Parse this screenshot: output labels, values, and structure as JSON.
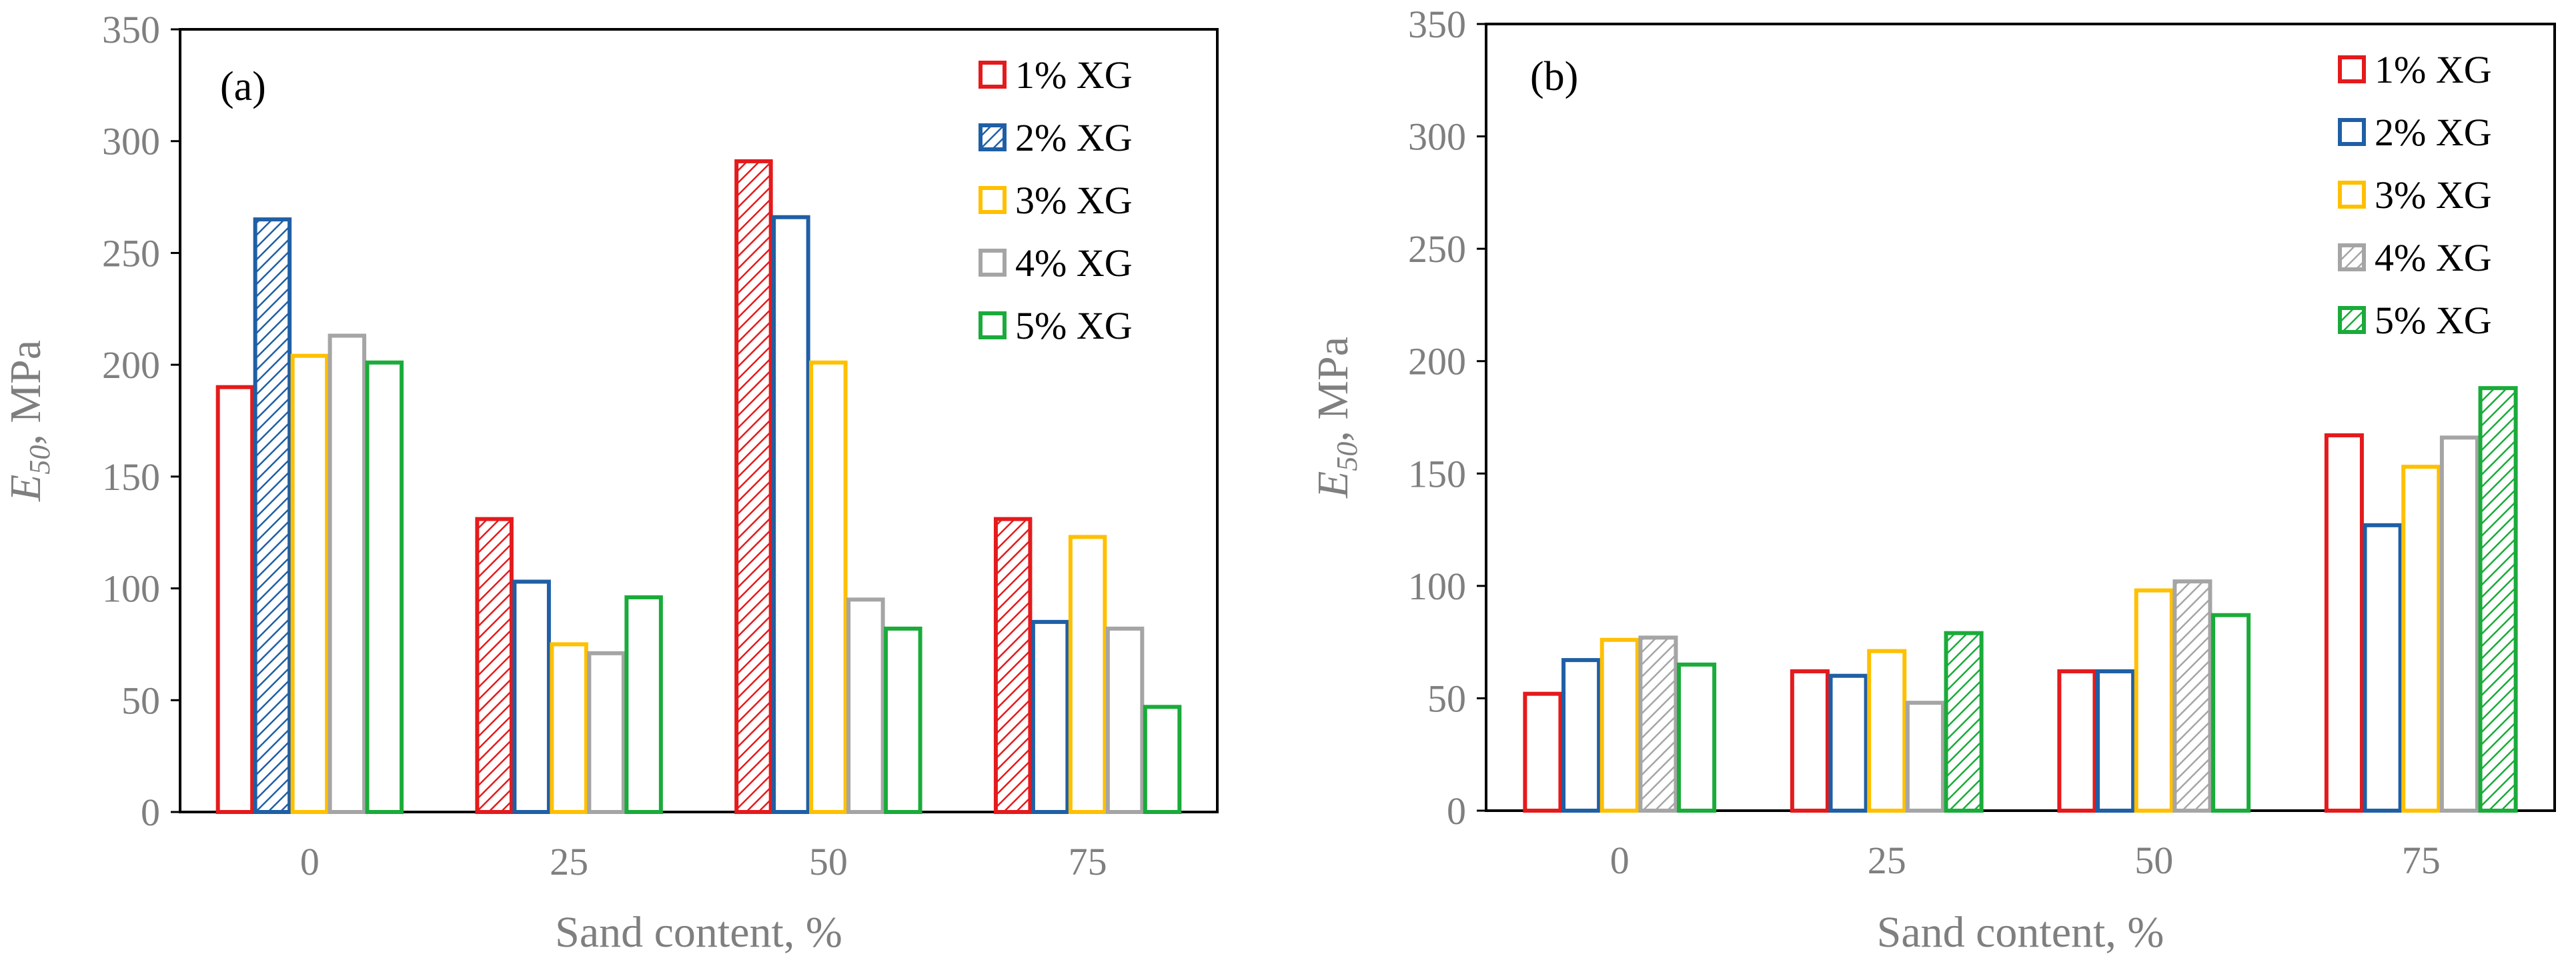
{
  "chart_data": [
    {
      "type": "bar",
      "panel_label": "(a)",
      "categories": [
        "0",
        "25",
        "50",
        "75"
      ],
      "series": [
        {
          "name": "1% XG",
          "color": "#e41a1c",
          "values": [
            190,
            131,
            291,
            131
          ],
          "hatched": [
            false,
            true,
            true,
            true
          ]
        },
        {
          "name": "2% XG",
          "color": "#1f5fa5",
          "values": [
            265,
            103,
            266,
            85
          ],
          "hatched": [
            true,
            false,
            false,
            false
          ]
        },
        {
          "name": "3% XG",
          "color": "#ffc000",
          "values": [
            204,
            75,
            201,
            123
          ],
          "hatched": [
            false,
            false,
            false,
            false
          ]
        },
        {
          "name": "4% XG",
          "color": "#a5a5a5",
          "values": [
            213,
            71,
            95,
            82
          ],
          "hatched": [
            false,
            false,
            false,
            false
          ]
        },
        {
          "name": "5% XG",
          "color": "#1aab3a",
          "values": [
            201,
            96,
            82,
            47
          ],
          "hatched": [
            false,
            false,
            false,
            false
          ]
        }
      ],
      "legend_hatched": [
        false,
        true,
        false,
        false,
        false
      ],
      "xlabel": "Sand content, %",
      "ylabel_main": "E",
      "ylabel_sub": "50",
      "ylabel_rest": ", MPa",
      "ylim": [
        0,
        350
      ],
      "yticks": [
        "0",
        "50",
        "100",
        "150",
        "200",
        "250",
        "300",
        "350"
      ]
    },
    {
      "type": "bar",
      "panel_label": "(b)",
      "categories": [
        "0",
        "25",
        "50",
        "75"
      ],
      "series": [
        {
          "name": "1% XG",
          "color": "#e41a1c",
          "values": [
            52,
            62,
            62,
            167
          ],
          "hatched": [
            false,
            false,
            false,
            false
          ]
        },
        {
          "name": "2% XG",
          "color": "#1f5fa5",
          "values": [
            67,
            60,
            62,
            127
          ],
          "hatched": [
            false,
            false,
            false,
            false
          ]
        },
        {
          "name": "3% XG",
          "color": "#ffc000",
          "values": [
            76,
            71,
            98,
            153
          ],
          "hatched": [
            false,
            false,
            false,
            false
          ]
        },
        {
          "name": "4% XG",
          "color": "#a5a5a5",
          "values": [
            77,
            48,
            102,
            166
          ],
          "hatched": [
            true,
            false,
            true,
            false
          ]
        },
        {
          "name": "5% XG",
          "color": "#1aab3a",
          "values": [
            65,
            79,
            87,
            188
          ],
          "hatched": [
            false,
            true,
            false,
            true
          ]
        }
      ],
      "legend_hatched": [
        false,
        false,
        false,
        true,
        true
      ],
      "xlabel": "Sand content, %",
      "ylabel_main": "E",
      "ylabel_sub": "50",
      "ylabel_rest": ", MPa",
      "ylim": [
        0,
        350
      ],
      "yticks": [
        "0",
        "50",
        "100",
        "150",
        "200",
        "250",
        "300",
        "350"
      ]
    }
  ]
}
